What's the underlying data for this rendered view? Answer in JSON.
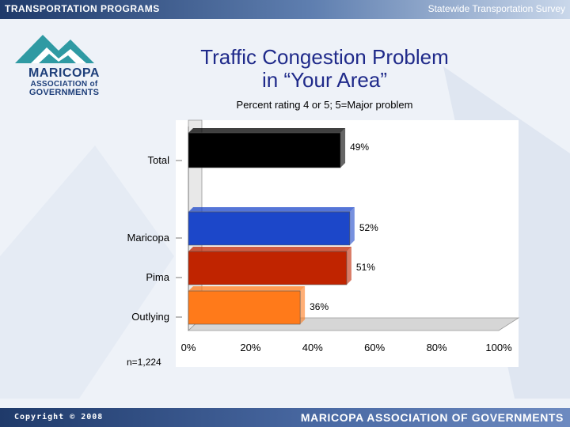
{
  "header": {
    "left": "TRANSPORTATION PROGRAMS",
    "right": "Statewide Transportation Survey"
  },
  "logo": {
    "line1": "MARICOPA",
    "line2": "ASSOCIATION of",
    "line3": "GOVERNMENTS"
  },
  "footer": {
    "copyright": "Copyright © 2008",
    "org": "MARICOPA ASSOCIATION OF GOVERNMENTS"
  },
  "colors": {
    "total": "#000000",
    "maricopa": "#1c47c9",
    "pima": "#c02400",
    "outlying": "#ff7a1a"
  },
  "chart_data": {
    "type": "bar",
    "orientation": "horizontal",
    "title": "Traffic Congestion Problem in “Your Area”",
    "title_lines": [
      "Traffic Congestion Problem",
      "in “Your Area”"
    ],
    "subtitle": "Percent rating 4 or 5; 5=Major problem",
    "categories": [
      "Total",
      "Maricopa",
      "Pima",
      "Outlying"
    ],
    "values": [
      49,
      52,
      51,
      36
    ],
    "value_labels": [
      "49%",
      "52%",
      "51%",
      "36%"
    ],
    "xlim": [
      0,
      100
    ],
    "xticks": [
      "0%",
      "20%",
      "40%",
      "60%",
      "80%",
      "100%"
    ],
    "note": "n=1,224",
    "style": "3d"
  }
}
